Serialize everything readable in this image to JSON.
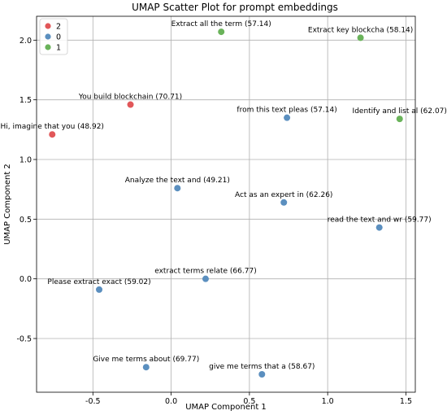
{
  "chart_data": {
    "type": "scatter",
    "title": "UMAP Scatter Plot for prompt embeddings",
    "xlabel": "UMAP Component 1",
    "ylabel": "UMAP Component 2",
    "xlim": [
      -0.86,
      1.56
    ],
    "ylim": [
      -0.95,
      2.2
    ],
    "grid": true,
    "legend_placement": "top-left",
    "x_ticks": [
      "-0.5",
      "0.0",
      "0.5",
      "1.0",
      "1.5"
    ],
    "x_tick_values": [
      -0.5,
      0.0,
      0.5,
      1.0,
      1.5
    ],
    "y_ticks": [
      "-0.5",
      "0.0",
      "0.5",
      "1.0",
      "1.5",
      "2.0"
    ],
    "y_tick_values": [
      -0.5,
      0.0,
      0.5,
      1.0,
      1.5,
      2.0
    ],
    "series": [
      {
        "name": "2",
        "color": "#e15759",
        "points": [
          {
            "x": -0.76,
            "y": 1.21,
            "label": "Hi, imagine that you (48.92)"
          },
          {
            "x": -0.26,
            "y": 1.46,
            "label": "You build blockchain (70.71)"
          }
        ]
      },
      {
        "name": "0",
        "color": "#5b8fbf",
        "points": [
          {
            "x": 0.74,
            "y": 1.35,
            "label": "from this text pleas (57.14)"
          },
          {
            "x": 0.04,
            "y": 0.76,
            "label": "Analyze the text and (49.21)"
          },
          {
            "x": 0.72,
            "y": 0.64,
            "label": "Act as an expert in  (62.26)"
          },
          {
            "x": 1.33,
            "y": 0.43,
            "label": "read the text and wr (59.77)"
          },
          {
            "x": 0.22,
            "y": 0.0,
            "label": "extract terms relate (66.77)"
          },
          {
            "x": -0.46,
            "y": -0.09,
            "label": "Please extract exact (59.02)"
          },
          {
            "x": -0.16,
            "y": -0.74,
            "label": "Give me terms about  (69.77)"
          },
          {
            "x": 0.58,
            "y": -0.8,
            "label": "give me terms that a (58.67)"
          }
        ]
      },
      {
        "name": "1",
        "color": "#6ab35a",
        "points": [
          {
            "x": 0.32,
            "y": 2.07,
            "label": "Extract all the term (57.14)"
          },
          {
            "x": 1.21,
            "y": 2.02,
            "label": "Extract key blockcha (58.14)"
          },
          {
            "x": 1.46,
            "y": 1.34,
            "label": "Identify and list al (62.07)"
          }
        ]
      }
    ]
  }
}
